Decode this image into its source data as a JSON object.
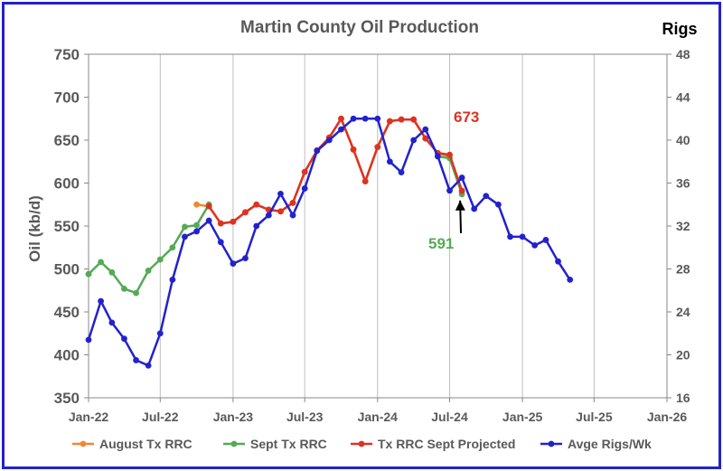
{
  "chart_data": {
    "type": "line",
    "title": "Martin County Oil Production",
    "ylabel": "Oil (kb/d)",
    "y2label": "Rigs",
    "xlim": [
      "2022-01-01",
      "2026-01-01"
    ],
    "ylim": [
      350,
      750
    ],
    "y2lim": [
      16,
      48
    ],
    "x_ticks": [
      "Jan-22",
      "Jul-22",
      "Jan-23",
      "Jul-23",
      "Jan-24",
      "Jul-24",
      "Jan-25",
      "Jul-25",
      "Jan-26"
    ],
    "y_ticks": [
      350,
      400,
      450,
      500,
      550,
      600,
      650,
      700,
      750
    ],
    "y2_ticks": [
      16,
      20,
      24,
      28,
      32,
      36,
      40,
      44,
      48
    ],
    "grid": "vertical",
    "legend": "bottom",
    "colors": {
      "august": "#ee8833",
      "sept": "#55aa55",
      "projected": "#dd3322",
      "rigs": "#2222cc"
    },
    "series": [
      {
        "name": "August Tx RRC",
        "axis": "left",
        "color": "#ee8833",
        "points": [
          [
            "2022-10-01",
            575
          ],
          [
            "2022-11-01",
            573
          ],
          [
            "2022-12-01",
            553
          ],
          [
            "2023-01-01",
            555
          ],
          [
            "2023-02-01",
            566
          ],
          [
            "2023-03-01",
            575
          ],
          [
            "2023-04-01",
            569
          ],
          [
            "2023-05-01",
            567
          ],
          [
            "2023-06-01",
            577
          ],
          [
            "2023-07-01",
            613
          ],
          [
            "2023-08-01",
            638
          ],
          [
            "2023-09-01",
            653
          ],
          [
            "2023-10-01",
            675
          ],
          [
            "2023-11-01",
            639
          ],
          [
            "2023-12-01",
            602
          ],
          [
            "2024-01-01",
            642
          ],
          [
            "2024-02-01",
            672
          ],
          [
            "2024-03-01",
            674
          ],
          [
            "2024-04-01",
            674
          ],
          [
            "2024-05-01",
            652
          ],
          [
            "2024-06-01",
            635
          ],
          [
            "2024-07-01",
            631
          ],
          [
            "2024-08-01",
            590
          ]
        ]
      },
      {
        "name": "Sept Tx RRC",
        "axis": "left",
        "color": "#55aa55",
        "points": [
          [
            "2022-01-01",
            494
          ],
          [
            "2022-02-01",
            508
          ],
          [
            "2022-03-01",
            496
          ],
          [
            "2022-04-01",
            477
          ],
          [
            "2022-05-01",
            472
          ],
          [
            "2022-06-01",
            498
          ],
          [
            "2022-07-01",
            511
          ],
          [
            "2022-08-01",
            525
          ],
          [
            "2022-09-01",
            549
          ],
          [
            "2022-10-01",
            551
          ],
          [
            "2022-11-01",
            575
          ],
          [
            "2024-06-01",
            631
          ],
          [
            "2024-07-01",
            629
          ],
          [
            "2024-08-01",
            587
          ]
        ]
      },
      {
        "name": "Tx RRC Sept Projected",
        "axis": "left",
        "color": "#dd3322",
        "points": [
          [
            "2022-11-01",
            573
          ],
          [
            "2022-12-01",
            553
          ],
          [
            "2023-01-01",
            555
          ],
          [
            "2023-02-01",
            566
          ],
          [
            "2023-03-01",
            575
          ],
          [
            "2023-04-01",
            569
          ],
          [
            "2023-05-01",
            567
          ],
          [
            "2023-06-01",
            577
          ],
          [
            "2023-07-01",
            613
          ],
          [
            "2023-08-01",
            638
          ],
          [
            "2023-09-01",
            653
          ],
          [
            "2023-10-01",
            675
          ],
          [
            "2023-11-01",
            639
          ],
          [
            "2023-12-01",
            602
          ],
          [
            "2024-01-01",
            642
          ],
          [
            "2024-02-01",
            672
          ],
          [
            "2024-03-01",
            674
          ],
          [
            "2024-04-01",
            674
          ],
          [
            "2024-05-01",
            652
          ],
          [
            "2024-06-01",
            635
          ],
          [
            "2024-07-01",
            633
          ],
          [
            "2024-08-01",
            591
          ]
        ]
      },
      {
        "name": "Avge Rigs/Wk",
        "axis": "right",
        "color": "#2222cc",
        "points": [
          [
            "2022-01-01",
            21.4
          ],
          [
            "2022-02-01",
            25.0
          ],
          [
            "2022-03-01",
            23.0
          ],
          [
            "2022-04-01",
            21.5
          ],
          [
            "2022-05-01",
            19.5
          ],
          [
            "2022-06-01",
            19.0
          ],
          [
            "2022-07-01",
            22.0
          ],
          [
            "2022-08-01",
            27.0
          ],
          [
            "2022-09-01",
            31.0
          ],
          [
            "2022-10-01",
            31.5
          ],
          [
            "2022-11-01",
            32.5
          ],
          [
            "2022-12-01",
            30.5
          ],
          [
            "2023-01-01",
            28.5
          ],
          [
            "2023-02-01",
            29.0
          ],
          [
            "2023-03-01",
            32.0
          ],
          [
            "2023-04-01",
            33.0
          ],
          [
            "2023-05-01",
            35.0
          ],
          [
            "2023-06-01",
            33.0
          ],
          [
            "2023-07-01",
            35.5
          ],
          [
            "2023-08-01",
            39.0
          ],
          [
            "2023-09-01",
            40.0
          ],
          [
            "2023-10-01",
            41.0
          ],
          [
            "2023-11-01",
            42.0
          ],
          [
            "2023-12-01",
            42.0
          ],
          [
            "2024-01-01",
            42.0
          ],
          [
            "2024-02-01",
            38.0
          ],
          [
            "2024-03-01",
            37.0
          ],
          [
            "2024-04-01",
            40.0
          ],
          [
            "2024-05-01",
            41.0
          ],
          [
            "2024-06-01",
            38.5
          ],
          [
            "2024-07-01",
            35.3
          ],
          [
            "2024-08-01",
            36.5
          ],
          [
            "2024-09-01",
            33.6
          ],
          [
            "2024-10-01",
            34.8
          ],
          [
            "2024-11-01",
            34.0
          ],
          [
            "2024-12-01",
            31.0
          ],
          [
            "2025-01-01",
            31.0
          ],
          [
            "2025-02-01",
            30.2
          ],
          [
            "2025-03-01",
            30.7
          ],
          [
            "2025-04-01",
            28.7
          ],
          [
            "2025-05-01",
            27.0
          ]
        ]
      }
    ],
    "annotations": [
      {
        "text": "673",
        "color": "#dd3322"
      },
      {
        "text": "591",
        "color": "#55aa55"
      }
    ]
  }
}
